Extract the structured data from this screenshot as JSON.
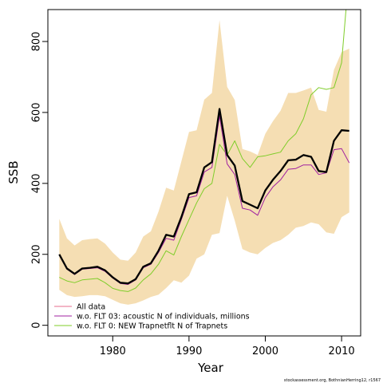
{
  "chart_data": {
    "type": "line",
    "xlabel": "Year",
    "ylabel": "SSB",
    "xlim": [
      1971.5,
      2012.5
    ],
    "ylim": [
      -30,
      890
    ],
    "xticks": [
      1980,
      1990,
      2000,
      2010
    ],
    "yticks": [
      0,
      200,
      400,
      600,
      800
    ],
    "grid": false,
    "legend_position": "bottom-left",
    "x": [
      1973,
      1974,
      1975,
      1976,
      1977,
      1978,
      1979,
      1980,
      1981,
      1982,
      1983,
      1984,
      1985,
      1986,
      1987,
      1988,
      1989,
      1990,
      1991,
      1992,
      1993,
      1994,
      1995,
      1996,
      1997,
      1998,
      1999,
      2000,
      2001,
      2002,
      2003,
      2004,
      2005,
      2006,
      2007,
      2008,
      2009,
      2010,
      2011
    ],
    "band": {
      "color": "#f5deb3",
      "upper": [
        300,
        245,
        225,
        240,
        243,
        245,
        230,
        205,
        185,
        182,
        205,
        250,
        265,
        320,
        388,
        380,
        462,
        545,
        550,
        636,
        655,
        860,
        672,
        635,
        497,
        490,
        480,
        540,
        575,
        605,
        655,
        655,
        662,
        670,
        607,
        602,
        720,
        770,
        780
      ],
      "lower": [
        100,
        85,
        80,
        82,
        85,
        85,
        82,
        72,
        62,
        58,
        62,
        70,
        80,
        86,
        105,
        127,
        120,
        140,
        188,
        200,
        255,
        260,
        365,
        295,
        215,
        205,
        200,
        218,
        232,
        240,
        255,
        275,
        280,
        290,
        285,
        262,
        258,
        305,
        318
      ]
    },
    "series": [
      {
        "name": "All data",
        "color": "#000000",
        "width": 2.3,
        "values": [
          200,
          160,
          145,
          160,
          162,
          165,
          155,
          135,
          120,
          118,
          130,
          165,
          175,
          210,
          255,
          250,
          305,
          370,
          375,
          445,
          460,
          610,
          480,
          450,
          350,
          340,
          330,
          380,
          410,
          435,
          465,
          467,
          480,
          475,
          435,
          432,
          520,
          550,
          548
        ]
      },
      {
        "name": "w.o. FLT 03:   acoustic   N of individuals, millions",
        "color": "#a020a0",
        "width": 1,
        "values": [
          198,
          158,
          143,
          158,
          160,
          162,
          152,
          133,
          118,
          115,
          128,
          162,
          172,
          205,
          245,
          240,
          298,
          360,
          365,
          432,
          445,
          590,
          455,
          425,
          330,
          325,
          310,
          360,
          390,
          410,
          440,
          442,
          452,
          452,
          425,
          430,
          495,
          498,
          458
        ]
      },
      {
        "name": "w.o. FLT 0: NEW Trapnetflt    N of Trapnets",
        "color": "#7fcd2a",
        "width": 1,
        "values": [
          135,
          125,
          120,
          128,
          130,
          132,
          120,
          104,
          98,
          95,
          105,
          128,
          145,
          172,
          210,
          198,
          250,
          298,
          345,
          385,
          400,
          510,
          480,
          520,
          470,
          445,
          475,
          478,
          483,
          488,
          520,
          540,
          582,
          650,
          670,
          665,
          670,
          740,
          1000
        ]
      }
    ],
    "legend_line_color_first": "#e76e8e"
  },
  "footer": "stockassessment.org,  BothnianHerring12,  r1567"
}
